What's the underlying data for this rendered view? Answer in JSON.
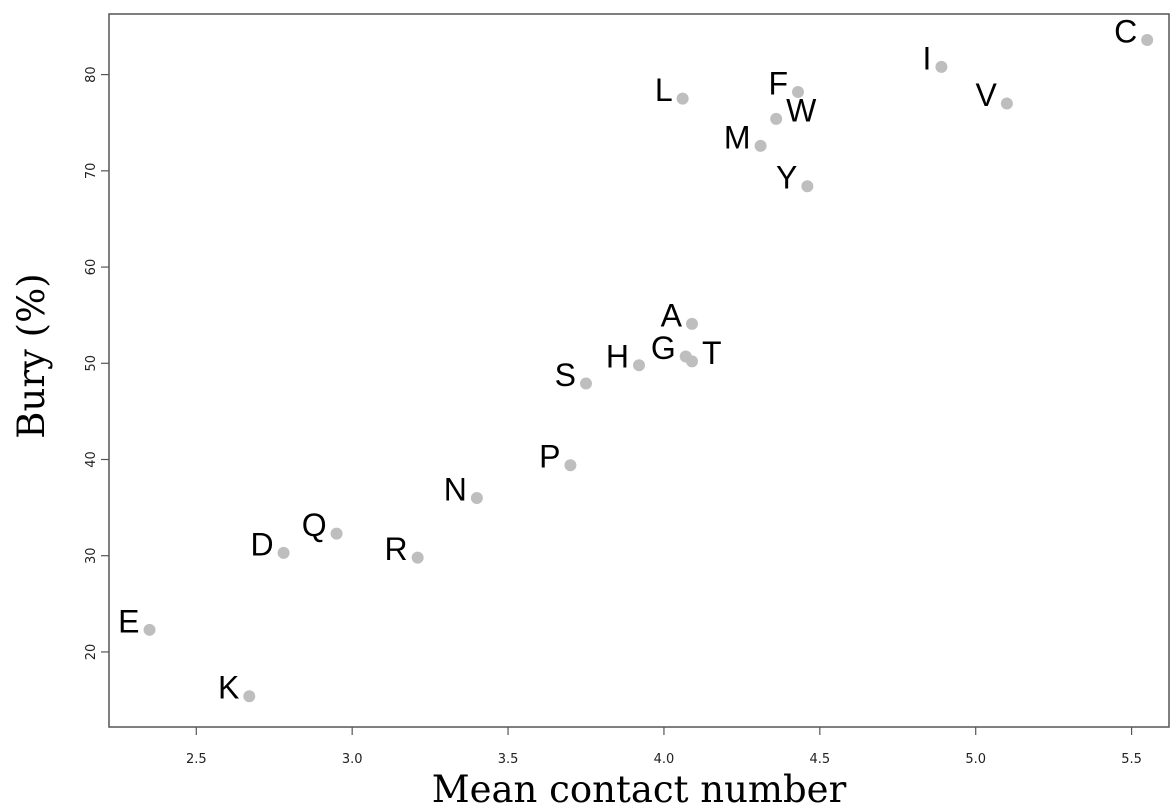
{
  "chart_data": {
    "type": "scatter",
    "xlabel": "Mean contact number",
    "ylabel": "Bury (%)",
    "xlim": [
      2.22,
      5.62
    ],
    "ylim": [
      12.2,
      86.3
    ],
    "x_ticks": [
      2.5,
      3.0,
      3.5,
      4.0,
      4.5,
      5.0,
      5.5
    ],
    "x_tick_labels": [
      "2.5",
      "3.0",
      "3.5",
      "4.0",
      "4.5",
      "5.0",
      "5.5"
    ],
    "y_ticks": [
      20,
      30,
      40,
      50,
      60,
      70,
      80
    ],
    "y_tick_labels": [
      "20",
      "30",
      "40",
      "50",
      "60",
      "70",
      "80"
    ],
    "grid": false,
    "point_color": "#bebebe",
    "points": [
      {
        "label": "C",
        "x": 5.55,
        "y": 83.6,
        "pos": "left"
      },
      {
        "label": "I",
        "x": 4.89,
        "y": 80.8,
        "pos": "left"
      },
      {
        "label": "V",
        "x": 5.1,
        "y": 77.0,
        "pos": "left"
      },
      {
        "label": "F",
        "x": 4.43,
        "y": 78.2,
        "pos": "left"
      },
      {
        "label": "L",
        "x": 4.06,
        "y": 77.5,
        "pos": "left"
      },
      {
        "label": "W",
        "x": 4.36,
        "y": 75.4,
        "pos": "right"
      },
      {
        "label": "M",
        "x": 4.31,
        "y": 72.6,
        "pos": "left"
      },
      {
        "label": "Y",
        "x": 4.46,
        "y": 68.4,
        "pos": "left"
      },
      {
        "label": "A",
        "x": 4.09,
        "y": 54.1,
        "pos": "left"
      },
      {
        "label": "G",
        "x": 4.07,
        "y": 50.7,
        "pos": "left"
      },
      {
        "label": "T",
        "x": 4.09,
        "y": 50.2,
        "pos": "right"
      },
      {
        "label": "H",
        "x": 3.92,
        "y": 49.8,
        "pos": "left"
      },
      {
        "label": "S",
        "x": 3.75,
        "y": 47.9,
        "pos": "left"
      },
      {
        "label": "P",
        "x": 3.7,
        "y": 39.4,
        "pos": "left"
      },
      {
        "label": "N",
        "x": 3.4,
        "y": 36.0,
        "pos": "left"
      },
      {
        "label": "Q",
        "x": 2.95,
        "y": 32.3,
        "pos": "left"
      },
      {
        "label": "D",
        "x": 2.78,
        "y": 30.3,
        "pos": "left"
      },
      {
        "label": "R",
        "x": 3.21,
        "y": 29.8,
        "pos": "left"
      },
      {
        "label": "E",
        "x": 2.35,
        "y": 22.3,
        "pos": "left"
      },
      {
        "label": "K",
        "x": 2.67,
        "y": 15.4,
        "pos": "left"
      }
    ]
  }
}
